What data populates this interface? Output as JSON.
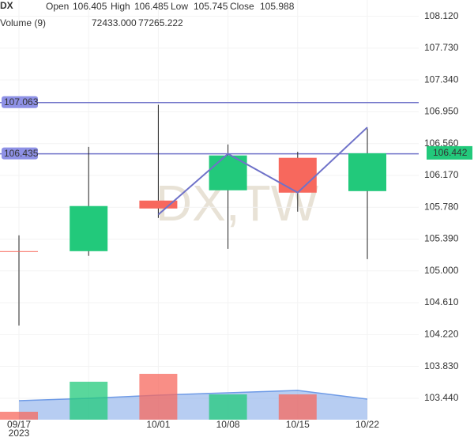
{
  "chart_data": {
    "type": "candlestick",
    "title": "DX",
    "watermark": "DX,TW",
    "legend_labels": {
      "open": "Open",
      "high": "High",
      "low": "Low",
      "close": "Close",
      "volume": "Volume (9)"
    },
    "legend_values": {
      "open": 106.405,
      "high": 106.485,
      "low": 105.745,
      "close": 105.988,
      "volume": {
        "value": 72433,
        "label": "72433.000"
      },
      "volume_ma": 77265.222
    },
    "categories": [
      "09/17",
      null,
      "10/01",
      "10/08",
      "10/15",
      "10/22"
    ],
    "year": "2023",
    "open": [
      105.242,
      105.242,
      105.862,
      105.988,
      106.386,
      105.978
    ],
    "high": [
      105.436,
      106.52,
      107.035,
      106.55,
      106.46,
      106.745
    ],
    "low": [
      104.331,
      105.184,
      105.649,
      105.27,
      105.726,
      105.145
    ],
    "close": [
      105.24,
      105.795,
      105.765,
      106.415,
      105.959,
      106.442
    ],
    "up_color": "#22c97b",
    "down_color": "#f7685d",
    "ylim": [
      103.09,
      108.32
    ],
    "yticks": [
      {
        "value": 108.12,
        "label": "108.120"
      },
      {
        "value": 107.73,
        "label": "107.730"
      },
      {
        "value": 107.34,
        "label": "107.340"
      },
      {
        "value": 106.95,
        "label": "106.950"
      },
      {
        "value": 106.56,
        "label": "106.560"
      },
      {
        "value": 106.17,
        "label": "106.170"
      },
      {
        "value": 105.78,
        "label": "105.780"
      },
      {
        "value": 105.39,
        "label": "105.390"
      },
      {
        "value": 105.0,
        "label": "105.000"
      },
      {
        "value": 104.61,
        "label": "104.610"
      },
      {
        "value": 104.22,
        "label": "104.220"
      },
      {
        "value": 103.83,
        "label": "103.830"
      },
      {
        "value": 103.44,
        "label": "103.440"
      }
    ],
    "hlines": [
      107.063,
      106.435
    ],
    "line_color": "#6f72c9",
    "trendline": {
      "x": [
        "10/01",
        "10/08",
        "10/15",
        "10/22"
      ],
      "values": [
        105.69,
        106.435,
        105.96,
        106.76
      ]
    },
    "volume": [
      25000,
      120000,
      145000,
      80000,
      80000,
      null
    ],
    "volume_ma": [
      60000,
      67500,
      77500,
      85000,
      92500,
      65000
    ],
    "volume_ylim": [
      0,
      200000
    ],
    "volume_ma_color": "#6f9be6",
    "grid": true
  }
}
